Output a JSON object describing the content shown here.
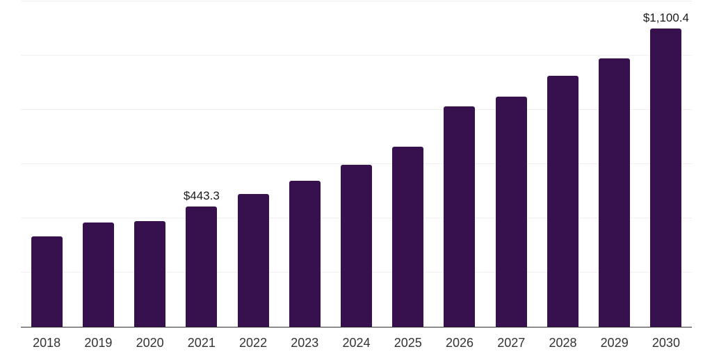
{
  "chart_data": {
    "type": "bar",
    "title": "",
    "xlabel": "",
    "ylabel": "",
    "categories": [
      "2018",
      "2019",
      "2020",
      "2021",
      "2022",
      "2023",
      "2024",
      "2025",
      "2026",
      "2027",
      "2028",
      "2029",
      "2030"
    ],
    "values": [
      333,
      385,
      390,
      443.3,
      489,
      539,
      598,
      663,
      814,
      848,
      927,
      991,
      1100.4
    ],
    "data_labels": {
      "2021": "$443.3",
      "2030": "$1,100.4"
    },
    "ylim": [
      0,
      1200
    ],
    "grid_step": 200,
    "grid": true,
    "legend_position": "none",
    "colors": {
      "bar": "#36114D",
      "grid_line": "#f0f0f0",
      "axis_line": "#2f2f2f",
      "tick_label": "#333333",
      "data_label": "#1a1a1a",
      "background": "#ffffff"
    }
  }
}
